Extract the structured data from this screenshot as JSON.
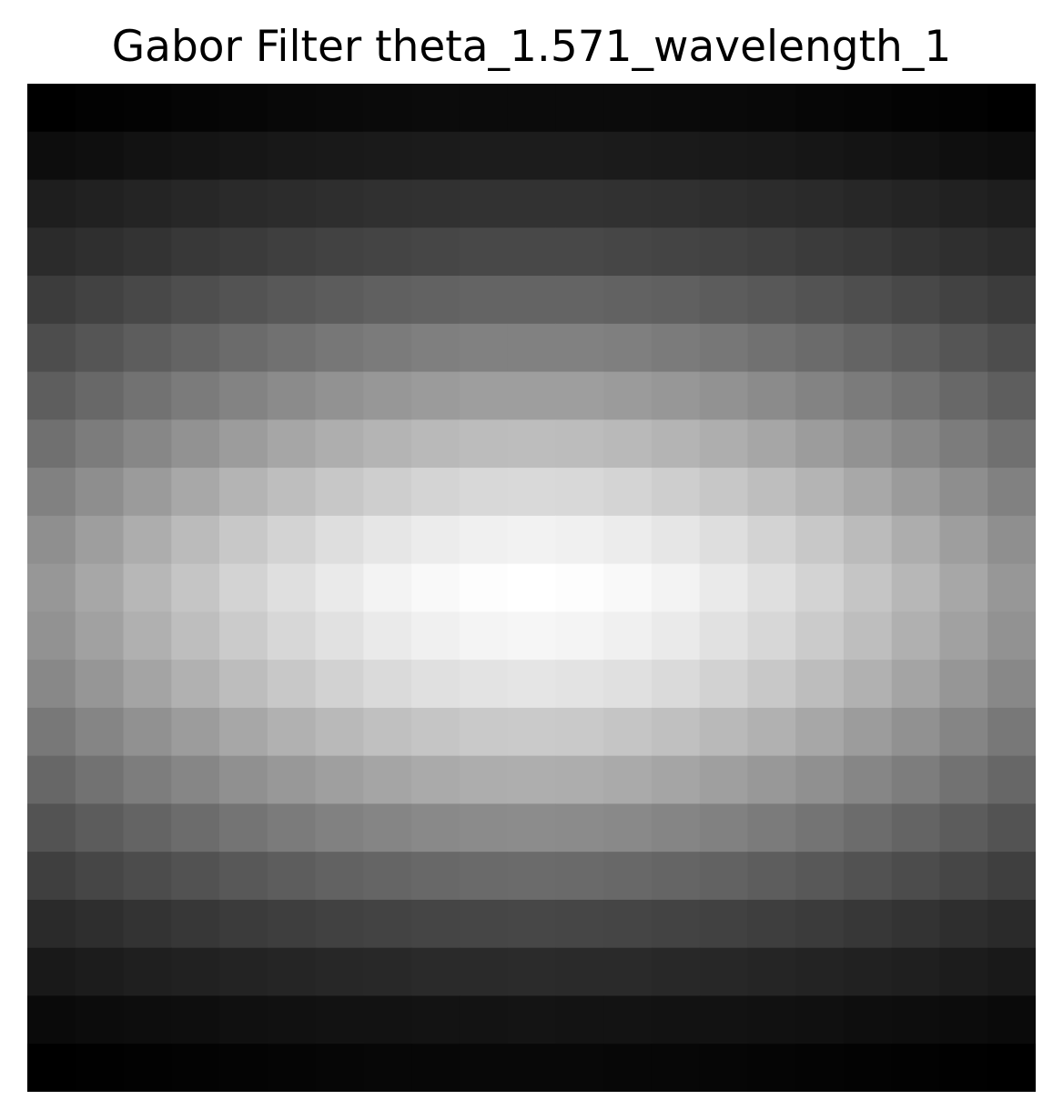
{
  "title": "Gabor Filter theta_1.571_wavelength_1",
  "chart_data": {
    "type": "heatmap",
    "title": "Gabor Filter theta_1.571_wavelength_1",
    "colormap": "gray",
    "axes_visible": false,
    "grid": false,
    "rows": 21,
    "cols": 21,
    "values": [
      [
        0.0,
        0.006,
        0.012,
        0.018,
        0.024,
        0.029,
        0.034,
        0.038,
        0.041,
        0.043,
        0.044,
        0.043,
        0.041,
        0.038,
        0.034,
        0.029,
        0.024,
        0.018,
        0.012,
        0.006,
        0.0
      ],
      [
        0.05,
        0.059,
        0.068,
        0.076,
        0.084,
        0.091,
        0.097,
        0.102,
        0.106,
        0.108,
        0.109,
        0.108,
        0.106,
        0.102,
        0.097,
        0.091,
        0.084,
        0.076,
        0.068,
        0.059,
        0.05
      ],
      [
        0.114,
        0.126,
        0.138,
        0.149,
        0.16,
        0.169,
        0.177,
        0.184,
        0.189,
        0.192,
        0.193,
        0.192,
        0.189,
        0.184,
        0.177,
        0.169,
        0.16,
        0.149,
        0.138,
        0.126,
        0.114
      ],
      [
        0.164,
        0.181,
        0.198,
        0.214,
        0.229,
        0.242,
        0.254,
        0.264,
        0.271,
        0.276,
        0.277,
        0.276,
        0.271,
        0.264,
        0.254,
        0.242,
        0.229,
        0.214,
        0.198,
        0.181,
        0.164
      ],
      [
        0.23,
        0.254,
        0.277,
        0.299,
        0.32,
        0.339,
        0.355,
        0.369,
        0.379,
        0.385,
        0.387,
        0.385,
        0.379,
        0.369,
        0.355,
        0.339,
        0.32,
        0.299,
        0.277,
        0.254,
        0.23
      ],
      [
        0.296,
        0.327,
        0.357,
        0.386,
        0.413,
        0.437,
        0.458,
        0.475,
        0.488,
        0.496,
        0.499,
        0.496,
        0.488,
        0.475,
        0.458,
        0.437,
        0.413,
        0.386,
        0.357,
        0.327,
        0.296
      ],
      [
        0.363,
        0.401,
        0.438,
        0.473,
        0.505,
        0.535,
        0.561,
        0.582,
        0.598,
        0.608,
        0.611,
        0.608,
        0.598,
        0.582,
        0.561,
        0.535,
        0.505,
        0.473,
        0.438,
        0.401,
        0.363
      ],
      [
        0.433,
        0.478,
        0.522,
        0.564,
        0.603,
        0.638,
        0.669,
        0.694,
        0.713,
        0.725,
        0.729,
        0.725,
        0.713,
        0.694,
        0.669,
        0.638,
        0.603,
        0.564,
        0.522,
        0.478,
        0.433
      ],
      [
        0.497,
        0.549,
        0.599,
        0.647,
        0.692,
        0.732,
        0.767,
        0.796,
        0.818,
        0.832,
        0.836,
        0.832,
        0.818,
        0.796,
        0.767,
        0.732,
        0.692,
        0.647,
        0.599,
        0.549,
        0.497
      ],
      [
        0.553,
        0.611,
        0.667,
        0.72,
        0.77,
        0.815,
        0.854,
        0.886,
        0.911,
        0.926,
        0.931,
        0.926,
        0.911,
        0.886,
        0.854,
        0.815,
        0.77,
        0.72,
        0.667,
        0.611,
        0.553
      ],
      [
        0.584,
        0.645,
        0.704,
        0.761,
        0.813,
        0.86,
        0.901,
        0.935,
        0.961,
        0.977,
        0.983,
        0.977,
        0.961,
        0.935,
        0.901,
        0.86,
        0.813,
        0.761,
        0.704,
        0.645,
        0.584
      ],
      [
        0.563,
        0.622,
        0.679,
        0.733,
        0.784,
        0.83,
        0.869,
        0.902,
        0.927,
        0.942,
        0.948,
        0.942,
        0.927,
        0.902,
        0.869,
        0.83,
        0.784,
        0.733,
        0.679,
        0.622,
        0.563
      ],
      [
        0.524,
        0.579,
        0.632,
        0.682,
        0.729,
        0.772,
        0.809,
        0.839,
        0.862,
        0.876,
        0.882,
        0.876,
        0.862,
        0.839,
        0.809,
        0.772,
        0.729,
        0.682,
        0.632,
        0.579,
        0.524
      ],
      [
        0.462,
        0.511,
        0.558,
        0.602,
        0.644,
        0.681,
        0.714,
        0.741,
        0.761,
        0.774,
        0.778,
        0.774,
        0.761,
        0.741,
        0.714,
        0.681,
        0.644,
        0.602,
        0.558,
        0.511,
        0.462
      ],
      [
        0.398,
        0.439,
        0.48,
        0.518,
        0.554,
        0.586,
        0.614,
        0.637,
        0.655,
        0.666,
        0.669,
        0.666,
        0.655,
        0.637,
        0.614,
        0.586,
        0.554,
        0.518,
        0.48,
        0.439,
        0.398
      ],
      [
        0.321,
        0.355,
        0.387,
        0.418,
        0.447,
        0.473,
        0.496,
        0.514,
        0.528,
        0.537,
        0.54,
        0.537,
        0.528,
        0.514,
        0.496,
        0.473,
        0.447,
        0.418,
        0.387,
        0.355,
        0.321
      ],
      [
        0.244,
        0.27,
        0.294,
        0.318,
        0.34,
        0.36,
        0.377,
        0.391,
        0.402,
        0.408,
        0.411,
        0.408,
        0.402,
        0.391,
        0.377,
        0.36,
        0.34,
        0.318,
        0.294,
        0.27,
        0.244
      ],
      [
        0.162,
        0.179,
        0.195,
        0.211,
        0.226,
        0.239,
        0.25,
        0.259,
        0.266,
        0.271,
        0.272,
        0.271,
        0.266,
        0.259,
        0.25,
        0.239,
        0.226,
        0.211,
        0.195,
        0.179,
        0.162
      ],
      [
        0.097,
        0.108,
        0.118,
        0.127,
        0.136,
        0.144,
        0.151,
        0.156,
        0.16,
        0.163,
        0.164,
        0.163,
        0.16,
        0.156,
        0.151,
        0.144,
        0.136,
        0.127,
        0.118,
        0.108,
        0.097
      ],
      [
        0.04,
        0.045,
        0.05,
        0.055,
        0.06,
        0.064,
        0.068,
        0.071,
        0.073,
        0.075,
        0.076,
        0.075,
        0.073,
        0.071,
        0.068,
        0.064,
        0.06,
        0.055,
        0.05,
        0.045,
        0.04
      ],
      [
        0.0,
        0.004,
        0.008,
        0.012,
        0.016,
        0.02,
        0.023,
        0.026,
        0.028,
        0.029,
        0.03,
        0.029,
        0.028,
        0.026,
        0.023,
        0.02,
        0.016,
        0.012,
        0.008,
        0.004,
        0.0
      ]
    ]
  }
}
